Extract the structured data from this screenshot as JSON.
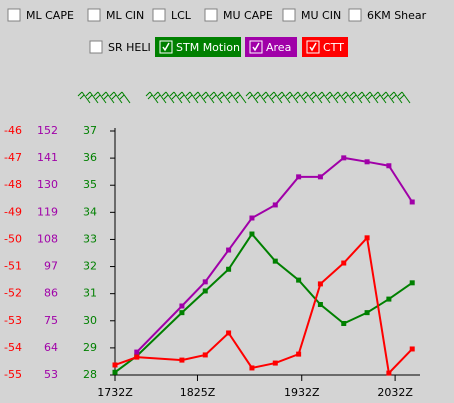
{
  "controls": [
    {
      "label": "ML CAPE",
      "checked": false
    },
    {
      "label": "ML CIN",
      "checked": false
    },
    {
      "label": "LCL",
      "checked": false
    },
    {
      "label": "MU CAPE",
      "checked": false
    },
    {
      "label": "MU CIN",
      "checked": false
    },
    {
      "label": "6KM Shear",
      "checked": false
    },
    {
      "label": "SR HELI",
      "checked": false
    }
  ],
  "chart_data": {
    "type": "line",
    "x": [
      1052,
      1066,
      1095,
      1110,
      1125,
      1140,
      1155,
      1170,
      1184,
      1199,
      1214,
      1228,
      1243
    ],
    "xlim": [
      1052,
      1248
    ],
    "xticks": [
      {
        "value": 1052,
        "label": "1732Z"
      },
      {
        "value": 1105,
        "label": "1825Z"
      },
      {
        "value": 1172,
        "label": "1932Z"
      },
      {
        "value": 1232,
        "label": "2032Z"
      }
    ],
    "series": [
      {
        "name": "STM Motion",
        "color": "#008000",
        "checked": true,
        "ylim": [
          28,
          37
        ],
        "yticks": [
          28,
          29,
          30,
          31,
          32,
          33,
          34,
          35,
          36,
          37
        ],
        "values": [
          28.1,
          28.7,
          30.3,
          31.1,
          31.9,
          33.2,
          32.2,
          31.5,
          30.6,
          29.9,
          30.3,
          30.8,
          31.4
        ]
      },
      {
        "name": "Area",
        "color": "#a000a8",
        "checked": true,
        "ylim": [
          53,
          152
        ],
        "yticks": [
          53,
          64,
          75,
          86,
          97,
          108,
          119,
          130,
          141,
          152
        ],
        "values": [
          null,
          62.3,
          81,
          90.8,
          103.7,
          116.7,
          122,
          133.4,
          133.4,
          141.1,
          139.5,
          137.9,
          123.2
        ]
      },
      {
        "name": "CTT",
        "color": "#ff0000",
        "checked": true,
        "ylim": [
          -55,
          -46
        ],
        "yticks": [
          -55,
          -54,
          -53,
          -52,
          -51,
          -50,
          -49,
          -48,
          -47,
          -46
        ],
        "values": [
          -54.63,
          -54.34,
          -54.45,
          -54.26,
          -53.45,
          -54.74,
          -54.56,
          -54.23,
          -51.64,
          -50.87,
          -49.94,
          -54.93,
          -54.04
        ]
      }
    ]
  }
}
